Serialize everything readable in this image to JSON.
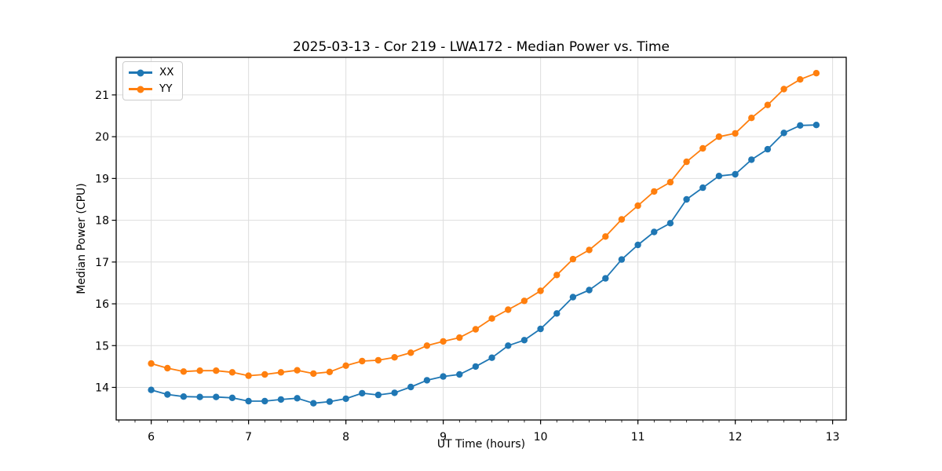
{
  "title": "2025-03-13 - Cor 219 - LWA172 - Median Power vs. Time",
  "chart_data": {
    "type": "line",
    "title": "2025-03-13 - Cor 219 - LWA172 - Median Power vs. Time",
    "xlabel": "UT Time (hours)",
    "ylabel": "Median Power (CPU)",
    "xlim": [
      5.64,
      13.14
    ],
    "ylim": [
      13.22,
      21.9
    ],
    "xticks": [
      6,
      7,
      8,
      9,
      10,
      11,
      12,
      13
    ],
    "yticks": [
      14,
      15,
      16,
      17,
      18,
      19,
      20,
      21
    ],
    "minor_xtick_step": 0.16667,
    "grid": true,
    "grid_color": "#dedede",
    "legend_position": "upper-left",
    "x": [
      6.0,
      6.167,
      6.333,
      6.5,
      6.667,
      6.833,
      7.0,
      7.167,
      7.333,
      7.5,
      7.667,
      7.833,
      8.0,
      8.167,
      8.333,
      8.5,
      8.667,
      8.833,
      9.0,
      9.167,
      9.333,
      9.5,
      9.667,
      9.833,
      10.0,
      10.167,
      10.333,
      10.5,
      10.667,
      10.833,
      11.0,
      11.167,
      11.333,
      11.5,
      11.667,
      11.833,
      12.0,
      12.167,
      12.333,
      12.5,
      12.667,
      12.833
    ],
    "series": [
      {
        "name": "XX",
        "color": "#1f77b4",
        "values": [
          13.94,
          13.83,
          13.78,
          13.77,
          13.77,
          13.75,
          13.67,
          13.67,
          13.71,
          13.74,
          13.62,
          13.66,
          13.73,
          13.86,
          13.82,
          13.87,
          14.01,
          14.17,
          14.26,
          14.31,
          14.5,
          14.71,
          15.0,
          15.13,
          15.4,
          15.77,
          16.16,
          16.33,
          16.61,
          17.06,
          17.41,
          17.72,
          17.93,
          18.5,
          18.78,
          19.06,
          19.1,
          19.45,
          19.7,
          20.09,
          20.27,
          20.28
        ]
      },
      {
        "name": "YY",
        "color": "#ff7f0e",
        "values": [
          14.57,
          14.46,
          14.38,
          14.4,
          14.4,
          14.36,
          14.28,
          14.31,
          14.36,
          14.41,
          14.33,
          14.37,
          14.52,
          14.63,
          14.65,
          14.72,
          14.83,
          15.0,
          15.1,
          15.19,
          15.39,
          15.65,
          15.86,
          16.07,
          16.31,
          16.69,
          17.07,
          17.29,
          17.61,
          18.02,
          18.35,
          18.69,
          18.91,
          19.4,
          19.72,
          20.0,
          20.08,
          20.45,
          20.76,
          21.14,
          21.37,
          21.52
        ]
      }
    ]
  }
}
